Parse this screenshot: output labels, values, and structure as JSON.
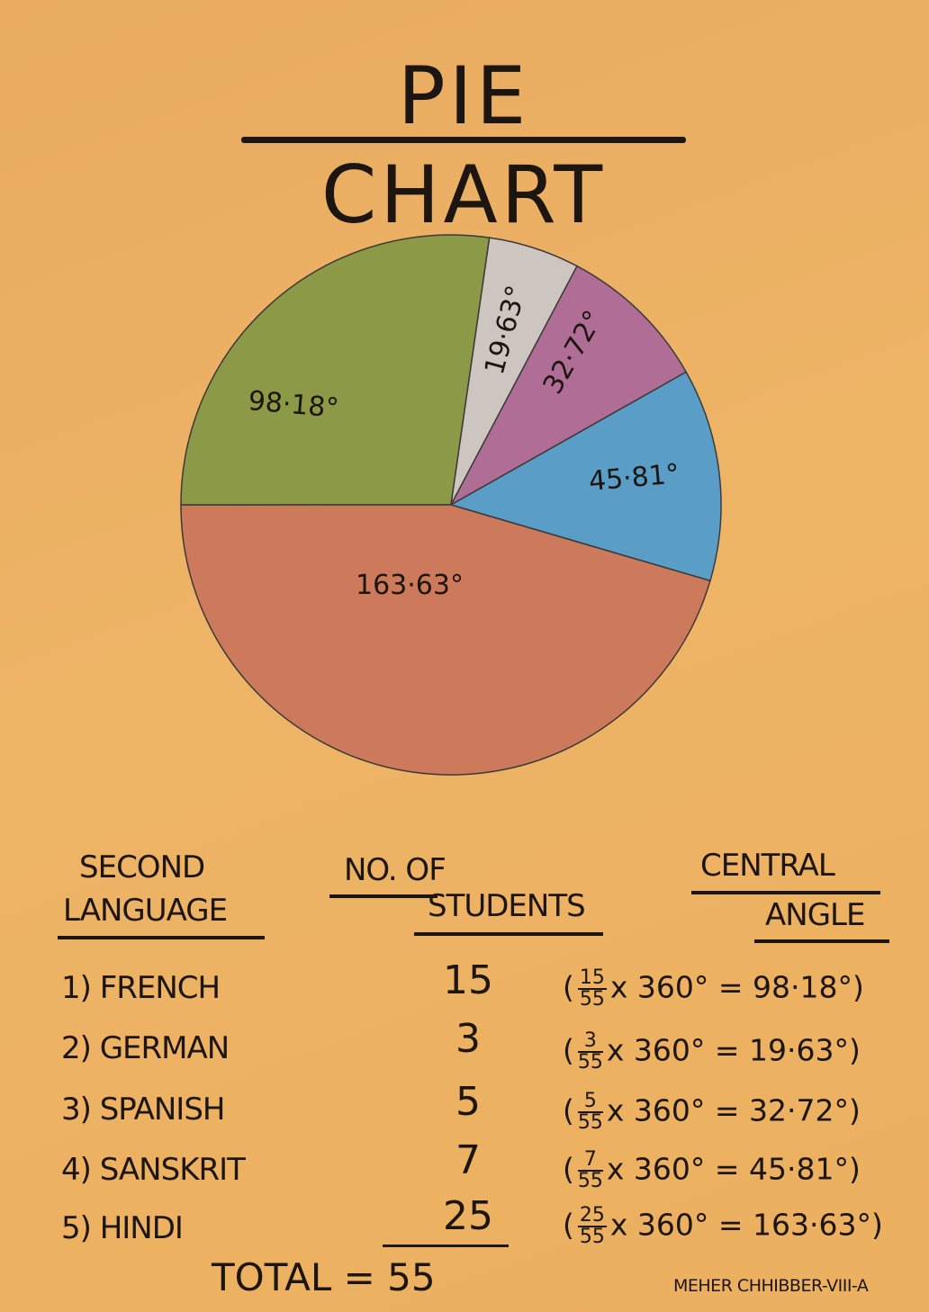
{
  "title": "PIE CHART",
  "table": {
    "headers": {
      "language": [
        "SECOND",
        "LANGUAGE"
      ],
      "students": [
        "No. OF",
        "STUDENTS"
      ],
      "angle": [
        "CENTRAL",
        "ANGLE"
      ]
    },
    "rows": [
      {
        "label": "1) FRENCH",
        "count": "15",
        "open": "(",
        "num": "15",
        "den": "55",
        "rest": "x 360° = 98·18°)"
      },
      {
        "label": "2) GERMAN",
        "count": "3",
        "open": "(",
        "num": "3",
        "den": "55",
        "rest": "x 360° = 19·63°)"
      },
      {
        "label": "3) SPANISH",
        "count": "5",
        "open": "(",
        "num": "5",
        "den": "55",
        "rest": "x 360° = 32·72°)"
      },
      {
        "label": "4) SANSKRIT",
        "count": "7",
        "open": "(",
        "num": "7",
        "den": "55",
        "rest": "x 360° = 45·81°)"
      },
      {
        "label": "5) HINDI",
        "count": "25",
        "open": "(",
        "num": "25",
        "den": "55",
        "rest": "x 360° = 163·63°)"
      }
    ],
    "total": "TOTAL = 55"
  },
  "signature": "MEHER CHHIBBER-VIII-A",
  "chart_data": {
    "type": "pie",
    "title": "PIE CHART",
    "categories": [
      "FRENCH",
      "GERMAN",
      "SPANISH",
      "SANSKRIT",
      "HINDI"
    ],
    "values": [
      15,
      3,
      5,
      7,
      25
    ],
    "angles": [
      98.18,
      19.63,
      32.72,
      45.81,
      163.63
    ],
    "slice_labels": [
      "98·18°",
      "19·63°",
      "32·72°",
      "45·81°",
      "163·63°"
    ],
    "colors": [
      "#8c9a48",
      "#cdc6c0",
      "#b06d96",
      "#5a9dc6",
      "#cd7a5c"
    ]
  }
}
